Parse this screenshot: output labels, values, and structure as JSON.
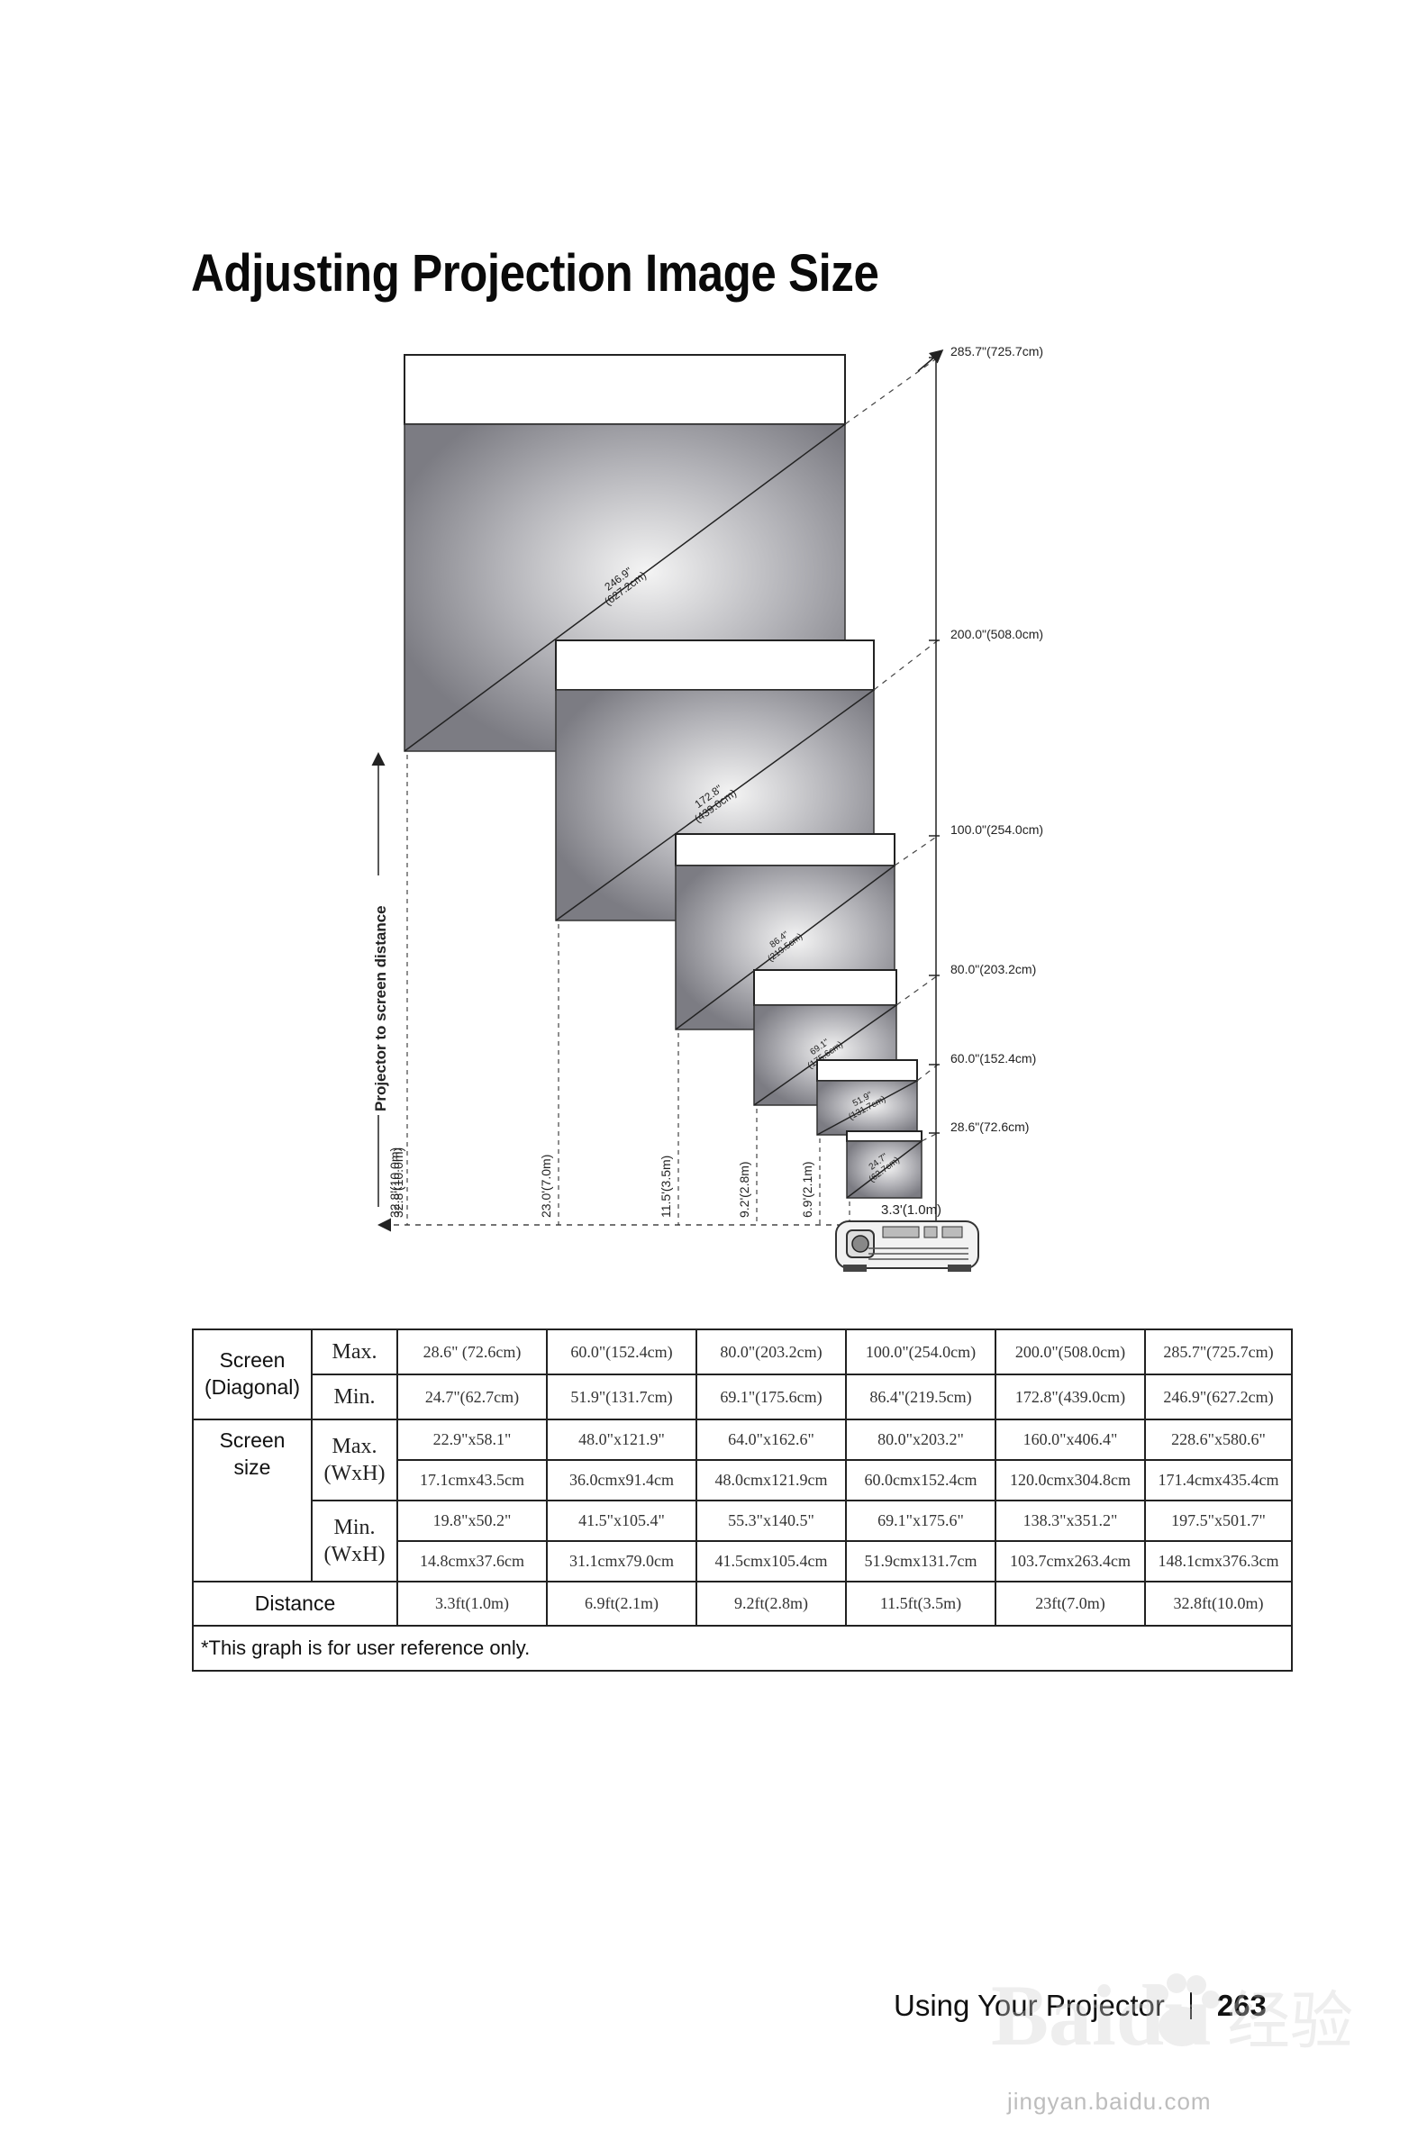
{
  "page": {
    "title": "Adjusting Projection Image Size",
    "footer_section": "Using Your Projector",
    "page_number": "263"
  },
  "diagram": {
    "axis_label": "Projector to screen distance",
    "screens": [
      {
        "max": "28.6\"(72.6cm)",
        "min_line1": "24.7\"",
        "min_line2": "(62.7cm)",
        "distance": "3.3'(1.0m)"
      },
      {
        "max": "60.0\"(152.4cm)",
        "min_line1": "51.9\"",
        "min_line2": "(131.7cm)",
        "distance": "6.9'(2.1m)"
      },
      {
        "max": "80.0\"(203.2cm)",
        "min_line1": "69.1\"",
        "min_line2": "(175.6cm)",
        "distance": "9.2'(2.8m)"
      },
      {
        "max": "100.0\"(254.0cm)",
        "min_line1": "86.4\"",
        "min_line2": "(219.5cm)",
        "distance": "11.5'(3.5m)"
      },
      {
        "max": "200.0\"(508.0cm)",
        "min_line1": "172.8\"",
        "min_line2": "(439.0cm)",
        "distance": "23.0'(7.0m)"
      },
      {
        "max": "285.7\"(725.7cm)",
        "min_line1": "246.9\"",
        "min_line2": "(627.2cm)",
        "distance": "32.8'(10.0m)"
      }
    ]
  },
  "table": {
    "screen_diagonal_label_1": "Screen",
    "screen_diagonal_label_2": "(Diagonal)",
    "screen_size_label_1": "Screen",
    "screen_size_label_2": "size",
    "max_label": "Max.",
    "min_label": "Min.",
    "wxh_label": "(WxH)",
    "distance_label": "Distance",
    "diag_max": [
      "28.6\" (72.6cm)",
      "60.0\"(152.4cm)",
      "80.0\"(203.2cm)",
      "100.0\"(254.0cm)",
      "200.0\"(508.0cm)",
      "285.7\"(725.7cm)"
    ],
    "diag_min": [
      "24.7\"(62.7cm)",
      "51.9\"(131.7cm)",
      "69.1\"(175.6cm)",
      "86.4\"(219.5cm)",
      "172.8\"(439.0cm)",
      "246.9\"(627.2cm)"
    ],
    "size_max_in": [
      "22.9\"x58.1\"",
      "48.0\"x121.9\"",
      "64.0\"x162.6\"",
      "80.0\"x203.2\"",
      "160.0\"x406.4\"",
      "228.6\"x580.6\""
    ],
    "size_max_cm": [
      "17.1cmx43.5cm",
      "36.0cmx91.4cm",
      "48.0cmx121.9cm",
      "60.0cmx152.4cm",
      "120.0cmx304.8cm",
      "171.4cmx435.4cm"
    ],
    "size_min_in": [
      "19.8\"x50.2\"",
      "41.5\"x105.4\"",
      "55.3\"x140.5\"",
      "69.1\"x175.6\"",
      "138.3\"x351.2\"",
      "197.5\"x501.7\""
    ],
    "size_min_cm": [
      "14.8cmx37.6cm",
      "31.1cmx79.0cm",
      "41.5cmx105.4cm",
      "51.9cmx131.7cm",
      "103.7cmx263.4cm",
      "148.1cmx376.3cm"
    ],
    "distance": [
      "3.3ft(1.0m)",
      "6.9ft(2.1m)",
      "9.2ft(2.8m)",
      "11.5ft(3.5m)",
      "23ft(7.0m)",
      "32.8ft(10.0m)"
    ],
    "note": "*This graph is for user reference only."
  },
  "watermark": {
    "brand": "Baidu",
    "brand_cn": "经验",
    "url": "jingyan.baidu.com"
  }
}
